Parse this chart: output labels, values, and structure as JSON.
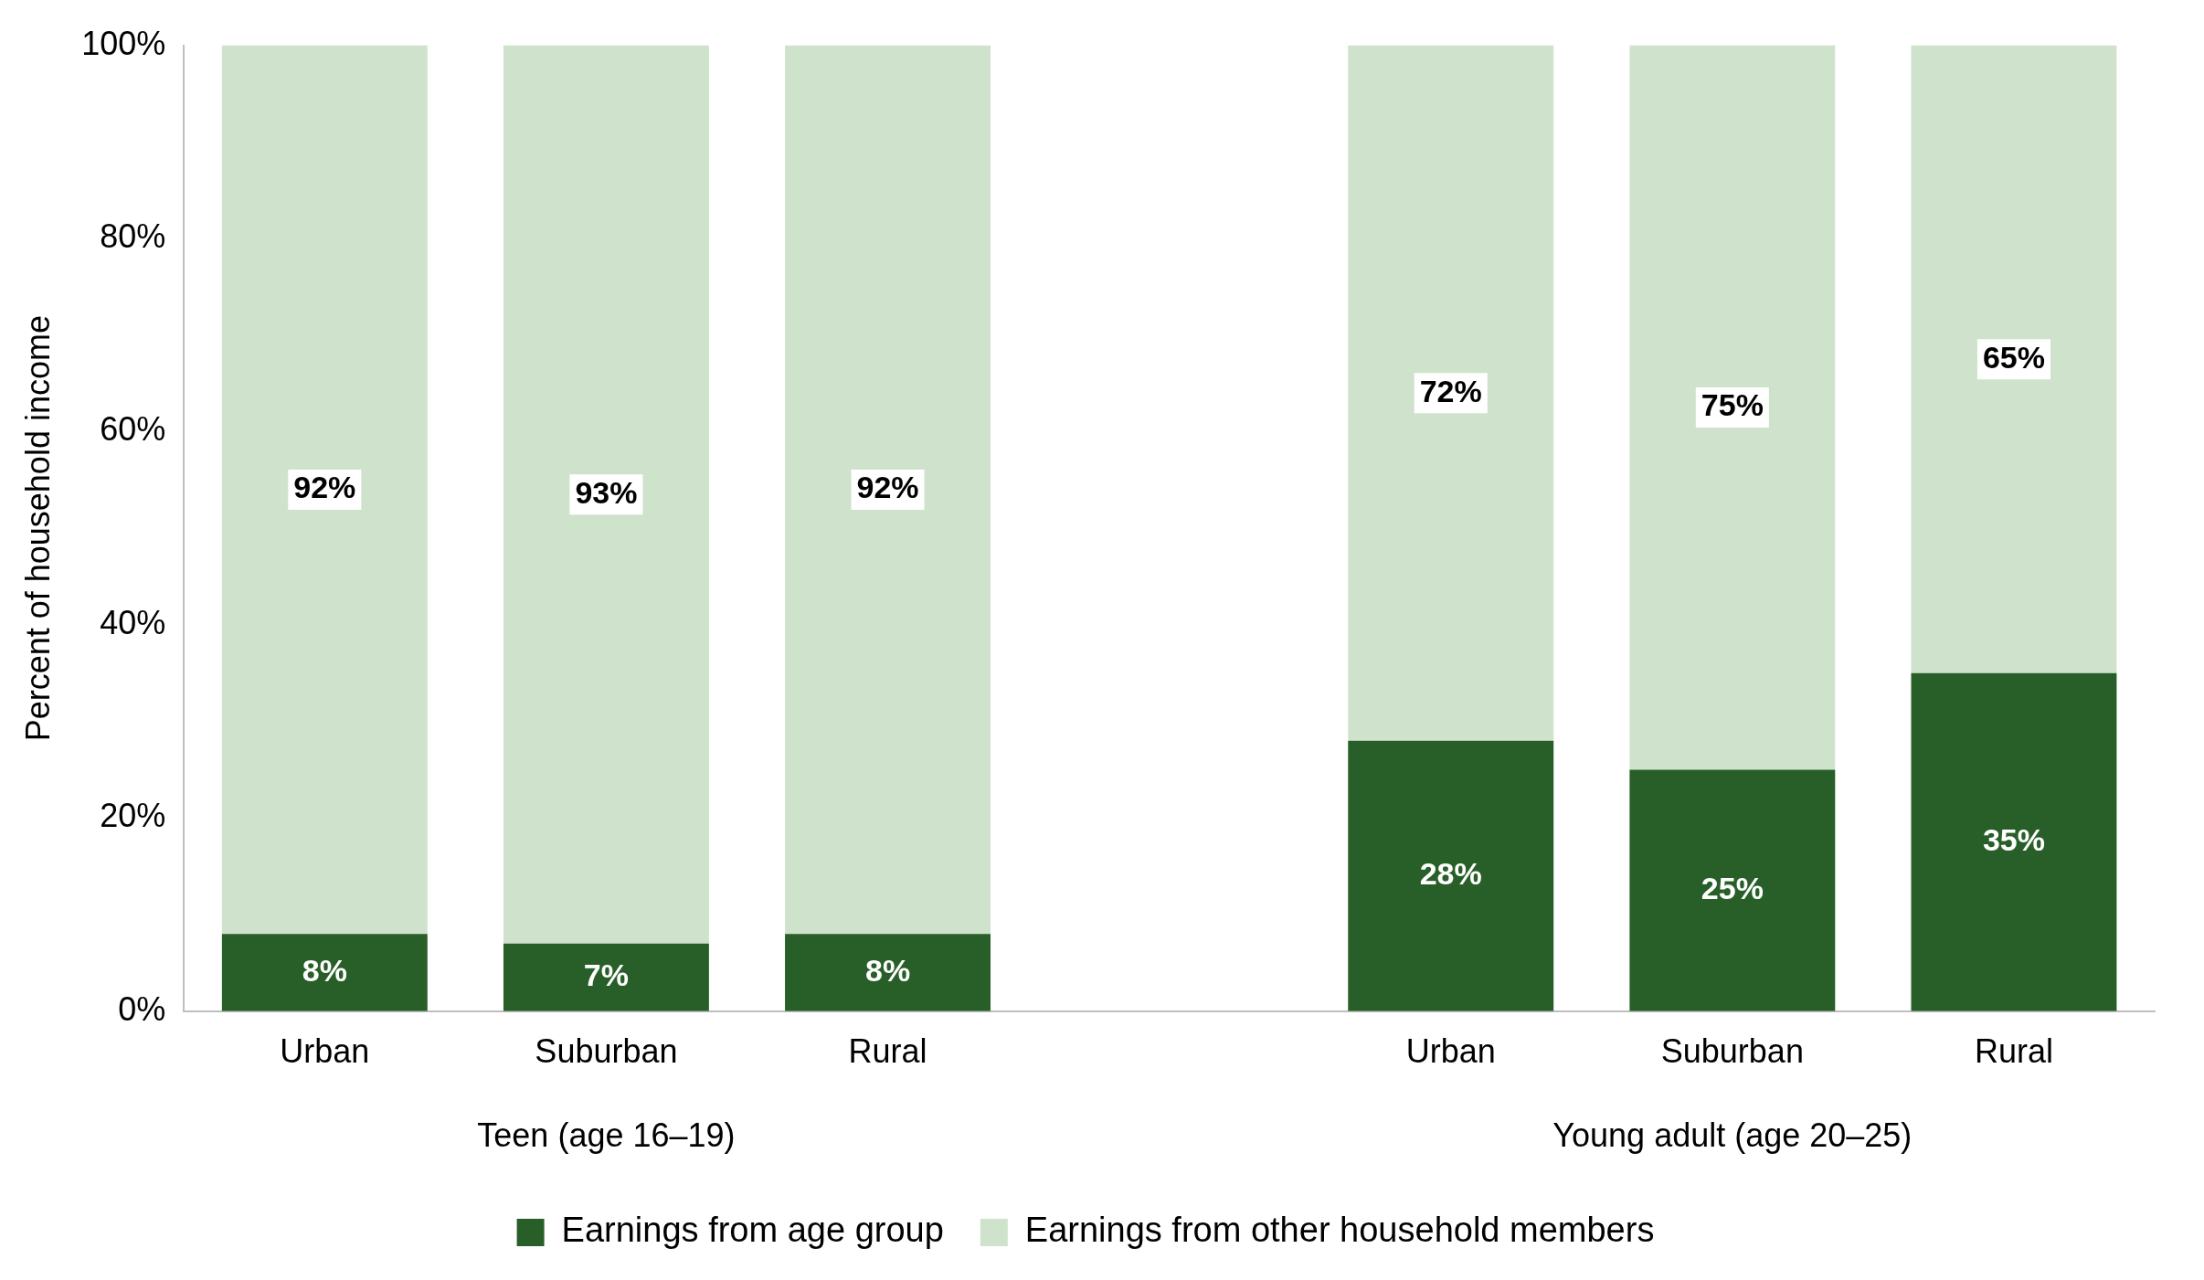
{
  "chart_data": {
    "type": "bar",
    "stacked": true,
    "ylabel": "Percent of household income",
    "categories": [
      "Urban",
      "Suburban",
      "Rural",
      null,
      "Urban",
      "Suburban",
      "Rural"
    ],
    "series": [
      {
        "name": "Earnings from age group",
        "color": "#285e28",
        "values": [
          8,
          7,
          8,
          null,
          28,
          25,
          35
        ],
        "value_labels": [
          "8%",
          "7%",
          "8%",
          null,
          "28%",
          "25%",
          "35%"
        ]
      },
      {
        "name": "Earnings from other household members",
        "color": "#cfe3cc",
        "values": [
          92,
          93,
          92,
          null,
          72,
          75,
          65
        ],
        "value_labels": [
          "92%",
          "93%",
          "92%",
          null,
          "72%",
          "75%",
          "65%"
        ]
      }
    ],
    "ylim": [
      0,
      100
    ],
    "yticks": [
      {
        "value": 0,
        "label": "0%"
      },
      {
        "value": 20,
        "label": "20%"
      },
      {
        "value": 40,
        "label": "40%"
      },
      {
        "value": 60,
        "label": "60%"
      },
      {
        "value": 80,
        "label": "80%"
      },
      {
        "value": 100,
        "label": "100%"
      }
    ],
    "grid": false,
    "legend": "bottom",
    "annotations": [
      "Teen (age 16–19)",
      "Young adult (age 20–25)"
    ]
  }
}
